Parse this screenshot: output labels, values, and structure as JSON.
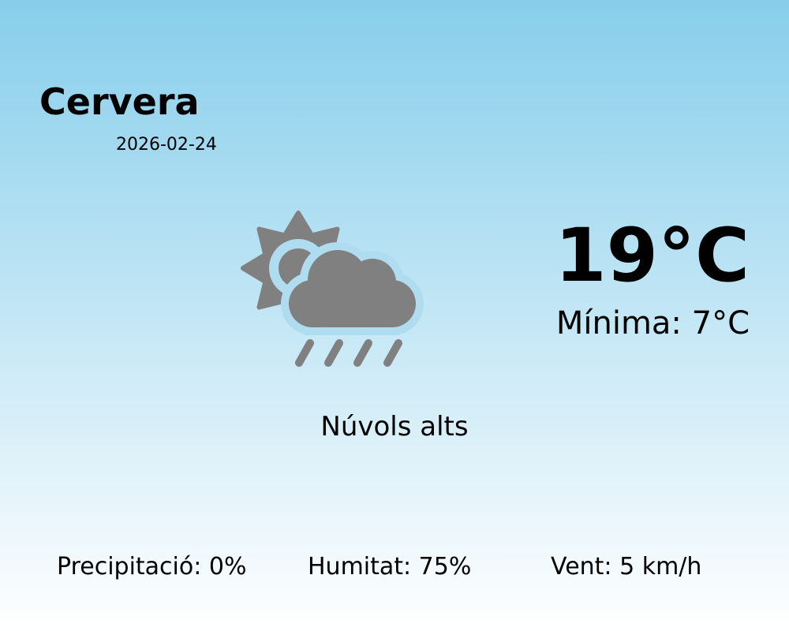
{
  "location": {
    "city": "Cervera",
    "date": "2026-02-24"
  },
  "current": {
    "temperature": "19°C",
    "minimum": "Mínima: 7°C",
    "description": "Núvols alts",
    "icon": "partly-cloudy-rain-icon"
  },
  "stats": {
    "precipitation": "Precipitació: 0%",
    "humidity": "Humitat: 75%",
    "wind": "Vent: 5 km/h"
  },
  "colors": {
    "background_top": "#87ceeb",
    "background_bottom": "#ffffff",
    "icon": "#808080"
  }
}
